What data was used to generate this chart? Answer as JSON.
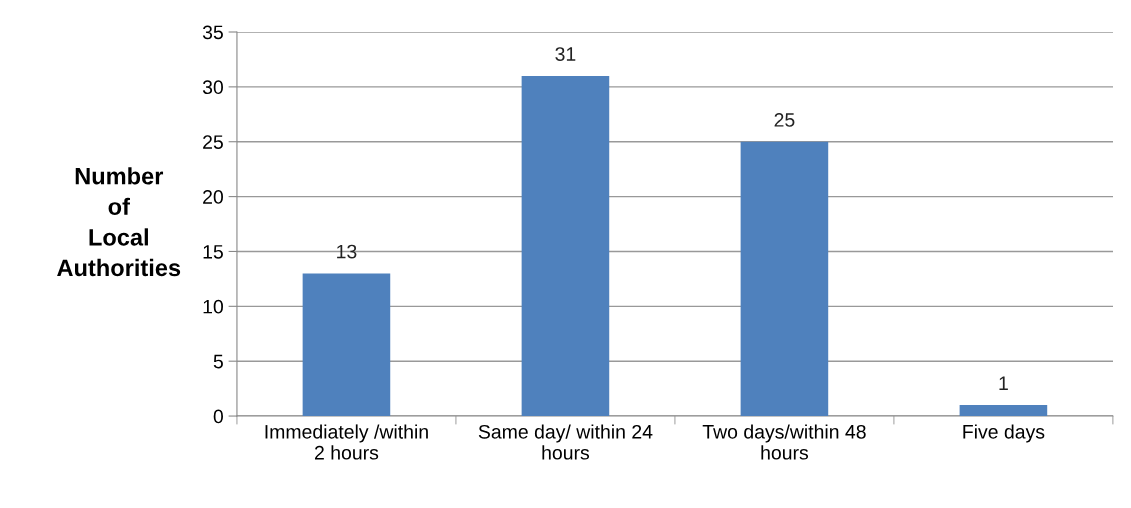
{
  "chart_data": {
    "type": "bar",
    "ylabel": "Number\nof\nLocal\nAuthorities",
    "categories": [
      "Immediately /within\n2 hours",
      "Same day/ within 24\nhours",
      "Two days/within 48\nhours",
      "Five days"
    ],
    "values": [
      13,
      31,
      25,
      1
    ],
    "color": "#4f81bd",
    "ylim": [
      0,
      35
    ],
    "yticks": [
      0,
      5,
      10,
      15,
      20,
      25,
      30,
      35
    ],
    "grid": "y",
    "data_labels": true,
    "legend": false
  }
}
